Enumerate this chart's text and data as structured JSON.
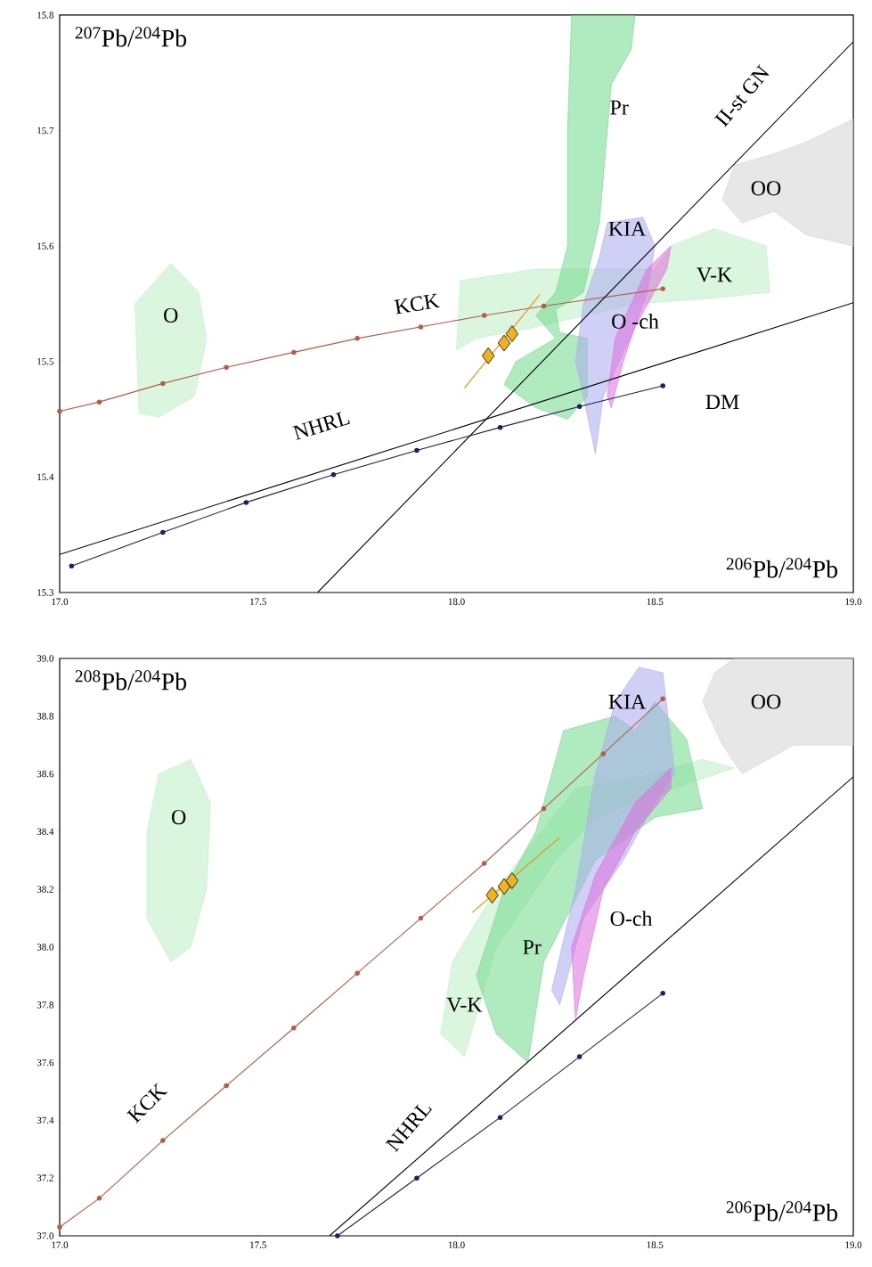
{
  "chart_data": [
    {
      "type": "line",
      "xlabel": "$^{206}$Pb/$^{204}$Pb",
      "ylabel": "$^{207}$Pb/$^{204}$Pb",
      "xlim": [
        17,
        19
      ],
      "ylim": [
        15.3,
        15.8
      ],
      "xticks": [
        {
          "value": 17,
          "label": "17.0"
        },
        {
          "value": 17.5,
          "label": "17.5"
        },
        {
          "value": 18,
          "label": "18.0"
        },
        {
          "value": 18.5,
          "label": "18.5"
        },
        {
          "value": 19,
          "label": "19.0"
        }
      ],
      "yticks": [
        15.3,
        15.4,
        15.5,
        15.6,
        15.7,
        15.8
      ],
      "grid": false,
      "legend": false,
      "series": [
        {
          "name": "O",
          "type": "area",
          "color": "#bdeec4",
          "x": [
            17.2,
            17.19,
            17.28,
            17.35,
            17.37,
            17.34,
            17.25
          ],
          "values": [
            15.455,
            15.55,
            15.585,
            15.56,
            15.52,
            15.47,
            15.452
          ]
        },
        {
          "name": "V-K",
          "type": "area",
          "color": "#bdeec4",
          "x": [
            18.0,
            18.01,
            18.2,
            18.5,
            18.54,
            18.65,
            18.78,
            18.79,
            18.65,
            18.45,
            18.2,
            18.05
          ],
          "values": [
            15.51,
            15.57,
            15.58,
            15.58,
            15.6,
            15.615,
            15.6,
            15.56,
            15.555,
            15.55,
            15.53,
            15.52
          ]
        },
        {
          "name": "Pr",
          "type": "area",
          "color": "#6fd98a",
          "x": [
            18.29,
            18.45,
            18.44,
            18.39,
            18.36,
            18.32,
            18.25,
            18.26,
            18.33,
            18.33,
            18.28,
            18.2,
            18.12,
            18.15,
            18.25,
            18.2,
            18.25,
            18.28,
            18.28
          ],
          "values": [
            15.8,
            15.8,
            15.77,
            15.74,
            15.62,
            15.56,
            15.545,
            15.525,
            15.52,
            15.47,
            15.45,
            15.46,
            15.48,
            15.5,
            15.52,
            15.54,
            15.56,
            15.6,
            15.7
          ]
        },
        {
          "name": "KIA",
          "type": "area",
          "color": "#a9a9ee",
          "x": [
            18.38,
            18.47,
            18.5,
            18.48,
            18.45,
            18.37,
            18.35,
            18.32,
            18.3,
            18.32,
            18.36
          ],
          "values": [
            15.62,
            15.625,
            15.6,
            15.56,
            15.53,
            15.47,
            15.42,
            15.47,
            15.5,
            15.55,
            15.59
          ]
        },
        {
          "name": "O -ch",
          "type": "area",
          "color": "#dd6edd",
          "x": [
            18.38,
            18.4,
            18.48,
            18.54,
            18.53,
            18.45,
            18.42,
            18.39
          ],
          "values": [
            15.47,
            15.52,
            15.58,
            15.6,
            15.58,
            15.53,
            15.5,
            15.46
          ]
        },
        {
          "name": "OO",
          "type": "area",
          "color": "#d4d4d4",
          "x": [
            18.67,
            18.7,
            18.8,
            18.88,
            18.97,
            19,
            19,
            18.88,
            18.8,
            18.72
          ],
          "values": [
            15.64,
            15.67,
            15.68,
            15.69,
            15.705,
            15.71,
            15.6,
            15.61,
            15.63,
            15.62
          ]
        },
        {
          "name": "KCK",
          "color": "#b85c45",
          "marker": "circle",
          "x": [
            17.0,
            17.1,
            17.26,
            17.42,
            17.59,
            17.75,
            17.91,
            18.07,
            18.22,
            18.52
          ],
          "values": [
            15.457,
            15.465,
            15.481,
            15.495,
            15.508,
            15.52,
            15.53,
            15.54,
            15.548,
            15.563
          ]
        },
        {
          "name": "DM",
          "color": "#1f1f5e",
          "marker": "circle",
          "x": [
            17.03,
            17.26,
            17.47,
            17.69,
            17.9,
            18.11,
            18.31,
            18.52
          ],
          "values": [
            15.323,
            15.352,
            15.378,
            15.402,
            15.423,
            15.443,
            15.461,
            15.479
          ]
        },
        {
          "name": "NHRL",
          "color": "#000000",
          "marker": "none",
          "x": [
            17,
            19
          ],
          "values": [
            15.333,
            15.551
          ]
        },
        {
          "name": "II-st GN",
          "color": "#000000",
          "marker": "none",
          "x": [
            17.65,
            19
          ],
          "values": [
            15.3,
            15.777
          ]
        },
        {
          "color": "#ee8a10",
          "marker": "none",
          "x": [
            18.02,
            18.21
          ],
          "values": [
            15.477,
            15.558
          ]
        },
        {
          "type": "scatter",
          "color": "#f2b21c",
          "marker": "diamond",
          "x": [
            18.08,
            18.12,
            18.14
          ],
          "values": [
            15.505,
            15.516,
            15.524
          ]
        }
      ]
    },
    {
      "type": "line",
      "xlabel": "$^{206}$Pb/$^{204}$Pb",
      "ylabel": "$^{208}$Pb/$^{204}$Pb",
      "xlim": [
        17,
        19
      ],
      "ylim": [
        37,
        39
      ],
      "xticks": [
        {
          "value": 17,
          "label": "17.0"
        },
        {
          "value": 17.5,
          "label": "17.5"
        },
        {
          "value": 18,
          "label": "18.0"
        },
        {
          "value": 18.5,
          "label": "18.5"
        },
        {
          "value": 19,
          "label": "19.0"
        }
      ],
      "yticks": [
        {
          "value": 37,
          "label": "37.0"
        },
        37.2,
        37.4,
        37.6,
        37.8,
        {
          "value": 38,
          "label": "38.0"
        },
        38.2,
        38.4,
        38.6,
        38.8,
        {
          "value": 39,
          "label": "39.0"
        }
      ],
      "grid": false,
      "legend": false,
      "series": [
        {
          "name": "O",
          "type": "area",
          "color": "#bdeec4",
          "x": [
            17.22,
            17.25,
            17.33,
            17.38,
            17.37,
            17.33,
            17.28,
            17.22
          ],
          "values": [
            38.4,
            38.6,
            38.65,
            38.5,
            38.2,
            38.0,
            37.95,
            38.1
          ]
        },
        {
          "name": "V-K",
          "type": "area",
          "color": "#bdeec4",
          "x": [
            17.96,
            17.99,
            18.1,
            18.3,
            18.5,
            18.62,
            18.7,
            18.55,
            18.35,
            18.25,
            18.1,
            18.02
          ],
          "values": [
            37.7,
            37.95,
            38.2,
            38.55,
            38.6,
            38.65,
            38.62,
            38.55,
            38.45,
            38.3,
            38.0,
            37.62
          ]
        },
        {
          "name": "Pr",
          "type": "area",
          "color": "#6fd98a",
          "x": [
            18.05,
            18.12,
            18.2,
            18.27,
            18.4,
            18.45,
            18.5,
            18.58,
            18.62,
            18.5,
            18.35,
            18.22,
            18.18,
            18.1
          ],
          "values": [
            37.9,
            38.2,
            38.4,
            38.75,
            38.8,
            38.75,
            38.85,
            38.72,
            38.48,
            38.45,
            38.3,
            37.95,
            37.6,
            37.7
          ]
        },
        {
          "name": "KIA",
          "type": "area",
          "color": "#a9a9ee",
          "x": [
            18.24,
            18.3,
            18.35,
            18.4,
            18.46,
            18.52,
            18.55,
            18.5,
            18.42,
            18.32,
            18.26
          ],
          "values": [
            37.85,
            38.2,
            38.6,
            38.85,
            38.97,
            38.95,
            38.6,
            38.5,
            38.3,
            38.1,
            37.8
          ]
        },
        {
          "name": "O-ch",
          "type": "area",
          "color": "#dd6edd",
          "x": [
            18.3,
            18.29,
            18.35,
            18.45,
            18.54,
            18.54,
            18.45,
            18.37,
            18.32
          ],
          "values": [
            37.75,
            38.0,
            38.25,
            38.5,
            38.62,
            38.55,
            38.4,
            38.2,
            37.9
          ]
        },
        {
          "name": "OO",
          "type": "area",
          "color": "#d4d4d4",
          "x": [
            18.62,
            18.65,
            18.7,
            19,
            19,
            18.85,
            18.72,
            18.67
          ],
          "values": [
            38.85,
            38.95,
            39.0,
            39.0,
            38.7,
            38.7,
            38.6,
            38.7
          ]
        },
        {
          "name": "KCK",
          "color": "#b85c45",
          "marker": "circle",
          "x": [
            17.0,
            17.1,
            17.26,
            17.42,
            17.59,
            17.75,
            17.91,
            18.07,
            18.22,
            18.37,
            18.52
          ],
          "values": [
            37.03,
            37.13,
            37.33,
            37.52,
            37.72,
            37.91,
            38.1,
            38.29,
            38.48,
            38.67,
            38.86
          ]
        },
        {
          "color": "#1f1f5e",
          "marker": "circle",
          "x": [
            17.7,
            17.9,
            18.11,
            18.31,
            18.52
          ],
          "values": [
            37.0,
            37.2,
            37.41,
            37.62,
            37.84
          ]
        },
        {
          "name": "NHRL",
          "color": "#000000",
          "marker": "none",
          "x": [
            17.68,
            19
          ],
          "values": [
            37.0,
            38.59
          ]
        },
        {
          "color": "#ee8a10",
          "marker": "none",
          "x": [
            18.04,
            18.26
          ],
          "values": [
            38.12,
            38.38
          ]
        },
        {
          "type": "scatter",
          "color": "#f2b21c",
          "marker": "diamond",
          "x": [
            18.09,
            18.12,
            18.14
          ],
          "values": [
            38.18,
            38.21,
            38.23
          ]
        }
      ]
    }
  ]
}
